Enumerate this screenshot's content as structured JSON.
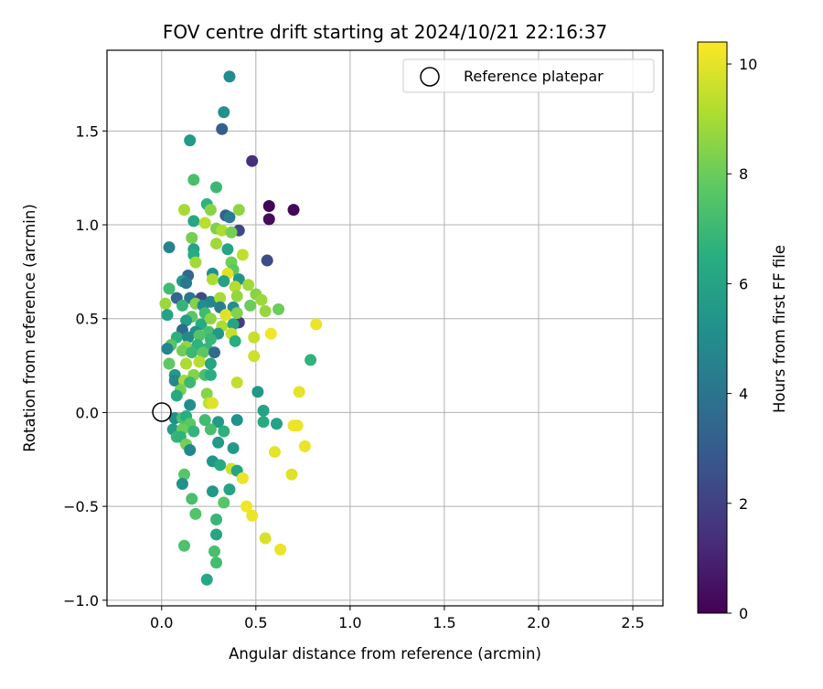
{
  "chart_data": {
    "type": "scatter",
    "title": "FOV centre drift starting at 2024/10/21 22:16:37",
    "xlabel": "Angular distance from reference (arcmin)",
    "ylabel": "Rotation from reference (arcmin)",
    "xlim": [
      -0.29,
      2.66
    ],
    "ylim": [
      -1.03,
      1.93
    ],
    "xticks": [
      0.0,
      0.5,
      1.0,
      1.5,
      2.0,
      2.5
    ],
    "xtick_labels": [
      "0.0",
      "0.5",
      "1.0",
      "1.5",
      "2.0",
      "2.5"
    ],
    "yticks": [
      -1.0,
      -0.5,
      0.0,
      0.5,
      1.0,
      1.5
    ],
    "ytick_labels": [
      "−1.0",
      "−0.5",
      "0.0",
      "0.5",
      "1.0",
      "1.5"
    ],
    "grid": true,
    "legend": {
      "position": "top-right",
      "entries": [
        "Reference platepar"
      ]
    },
    "reference_point": {
      "x": 0.0,
      "y": 0.0,
      "marker": "open circle"
    },
    "colorbar": {
      "label": "Hours from first FF file",
      "range": [
        0,
        10.4
      ],
      "ticks": [
        0,
        2,
        4,
        6,
        8,
        10
      ],
      "tick_labels": [
        "0",
        "2",
        "4",
        "6",
        "8",
        "10"
      ],
      "colormap": "viridis"
    },
    "points": [
      {
        "x": 0.57,
        "y": 1.1,
        "c": 0.1
      },
      {
        "x": 0.7,
        "y": 1.08,
        "c": 0.2
      },
      {
        "x": 0.57,
        "y": 1.03,
        "c": 0.3
      },
      {
        "x": 0.48,
        "y": 1.34,
        "c": 1.4
      },
      {
        "x": 0.32,
        "y": 1.51,
        "c": 3.1
      },
      {
        "x": 0.56,
        "y": 0.81,
        "c": 2.4
      },
      {
        "x": 0.41,
        "y": 0.97,
        "c": 2.2
      },
      {
        "x": 0.41,
        "y": 0.48,
        "c": 1.9
      },
      {
        "x": 0.36,
        "y": 1.79,
        "c": 5.0
      },
      {
        "x": 0.33,
        "y": 1.6,
        "c": 5.2
      },
      {
        "x": 0.15,
        "y": 1.45,
        "c": 5.6
      },
      {
        "x": 0.17,
        "y": 1.24,
        "c": 7.3
      },
      {
        "x": 0.29,
        "y": 1.2,
        "c": 7.0
      },
      {
        "x": 0.24,
        "y": 1.11,
        "c": 6.7
      },
      {
        "x": 0.34,
        "y": 1.05,
        "c": 3.2
      },
      {
        "x": 0.36,
        "y": 1.04,
        "c": 4.3
      },
      {
        "x": 0.12,
        "y": 1.08,
        "c": 9.0
      },
      {
        "x": 0.26,
        "y": 1.08,
        "c": 8.5
      },
      {
        "x": 0.41,
        "y": 1.08,
        "c": 8.6
      },
      {
        "x": 0.17,
        "y": 1.02,
        "c": 6.2
      },
      {
        "x": 0.23,
        "y": 1.01,
        "c": 9.3
      },
      {
        "x": 0.29,
        "y": 0.98,
        "c": 8.3
      },
      {
        "x": 0.32,
        "y": 0.97,
        "c": 9.1
      },
      {
        "x": 0.37,
        "y": 0.96,
        "c": 8.2
      },
      {
        "x": 0.04,
        "y": 0.88,
        "c": 4.6
      },
      {
        "x": 0.16,
        "y": 0.93,
        "c": 8.2
      },
      {
        "x": 0.17,
        "y": 0.87,
        "c": 5.9
      },
      {
        "x": 0.29,
        "y": 0.9,
        "c": 8.9
      },
      {
        "x": 0.35,
        "y": 0.87,
        "c": 6.1
      },
      {
        "x": 0.43,
        "y": 0.84,
        "c": 9.4
      },
      {
        "x": 0.17,
        "y": 0.84,
        "c": 6.4
      },
      {
        "x": 0.18,
        "y": 0.8,
        "c": 8.9
      },
      {
        "x": 0.37,
        "y": 0.8,
        "c": 8.1
      },
      {
        "x": 0.38,
        "y": 0.76,
        "c": 7.7
      },
      {
        "x": 0.35,
        "y": 0.74,
        "c": 9.9
      },
      {
        "x": 0.27,
        "y": 0.74,
        "c": 5.2
      },
      {
        "x": 0.14,
        "y": 0.73,
        "c": 3.5
      },
      {
        "x": 0.11,
        "y": 0.7,
        "c": 5.6
      },
      {
        "x": 0.27,
        "y": 0.71,
        "c": 9.1
      },
      {
        "x": 0.33,
        "y": 0.7,
        "c": 5.9
      },
      {
        "x": 0.41,
        "y": 0.71,
        "c": 5.4
      },
      {
        "x": 0.13,
        "y": 0.69,
        "c": 4.1
      },
      {
        "x": 0.04,
        "y": 0.66,
        "c": 7.1
      },
      {
        "x": 0.39,
        "y": 0.67,
        "c": 9.2
      },
      {
        "x": 0.46,
        "y": 0.68,
        "c": 8.9
      },
      {
        "x": 0.08,
        "y": 0.61,
        "c": 3.4
      },
      {
        "x": 0.15,
        "y": 0.61,
        "c": 4.0
      },
      {
        "x": 0.21,
        "y": 0.61,
        "c": 2.3
      },
      {
        "x": 0.26,
        "y": 0.59,
        "c": 4.7
      },
      {
        "x": 0.31,
        "y": 0.61,
        "c": 9.0
      },
      {
        "x": 0.4,
        "y": 0.62,
        "c": 8.7
      },
      {
        "x": 0.5,
        "y": 0.63,
        "c": 8.5
      },
      {
        "x": 0.02,
        "y": 0.58,
        "c": 8.8
      },
      {
        "x": 0.11,
        "y": 0.57,
        "c": 6.8
      },
      {
        "x": 0.18,
        "y": 0.58,
        "c": 8.4
      },
      {
        "x": 0.22,
        "y": 0.57,
        "c": 5.0
      },
      {
        "x": 0.31,
        "y": 0.56,
        "c": 4.4
      },
      {
        "x": 0.38,
        "y": 0.56,
        "c": 5.1
      },
      {
        "x": 0.47,
        "y": 0.57,
        "c": 8.0
      },
      {
        "x": 0.53,
        "y": 0.6,
        "c": 8.8
      },
      {
        "x": 0.62,
        "y": 0.55,
        "c": 8.0
      },
      {
        "x": 0.03,
        "y": 0.52,
        "c": 5.9
      },
      {
        "x": 0.16,
        "y": 0.51,
        "c": 7.7
      },
      {
        "x": 0.23,
        "y": 0.53,
        "c": 7.1
      },
      {
        "x": 0.34,
        "y": 0.52,
        "c": 9.9
      },
      {
        "x": 0.4,
        "y": 0.53,
        "c": 8.4
      },
      {
        "x": 0.55,
        "y": 0.54,
        "c": 8.7
      },
      {
        "x": 0.13,
        "y": 0.49,
        "c": 5.8
      },
      {
        "x": 0.21,
        "y": 0.47,
        "c": 6.4
      },
      {
        "x": 0.26,
        "y": 0.5,
        "c": 8.6
      },
      {
        "x": 0.32,
        "y": 0.46,
        "c": 9.1
      },
      {
        "x": 0.38,
        "y": 0.47,
        "c": 6.0
      },
      {
        "x": 0.11,
        "y": 0.44,
        "c": 3.6
      },
      {
        "x": 0.18,
        "y": 0.43,
        "c": 5.2
      },
      {
        "x": 0.25,
        "y": 0.43,
        "c": 7.3
      },
      {
        "x": 0.3,
        "y": 0.42,
        "c": 5.5
      },
      {
        "x": 0.37,
        "y": 0.42,
        "c": 9.5
      },
      {
        "x": 0.08,
        "y": 0.4,
        "c": 6.6
      },
      {
        "x": 0.14,
        "y": 0.4,
        "c": 4.9
      },
      {
        "x": 0.2,
        "y": 0.41,
        "c": 7.5
      },
      {
        "x": 0.26,
        "y": 0.39,
        "c": 6.9
      },
      {
        "x": 0.39,
        "y": 0.38,
        "c": 6.5
      },
      {
        "x": 0.49,
        "y": 0.4,
        "c": 9.5
      },
      {
        "x": 0.58,
        "y": 0.42,
        "c": 10.2
      },
      {
        "x": 0.82,
        "y": 0.47,
        "c": 10.1
      },
      {
        "x": 0.05,
        "y": 0.36,
        "c": 7.6
      },
      {
        "x": 0.13,
        "y": 0.35,
        "c": 8.7
      },
      {
        "x": 0.19,
        "y": 0.36,
        "c": 6.7
      },
      {
        "x": 0.24,
        "y": 0.34,
        "c": 6.8
      },
      {
        "x": 0.03,
        "y": 0.34,
        "c": 4.7
      },
      {
        "x": 0.11,
        "y": 0.33,
        "c": 8.1
      },
      {
        "x": 0.16,
        "y": 0.32,
        "c": 7.0
      },
      {
        "x": 0.22,
        "y": 0.32,
        "c": 7.7
      },
      {
        "x": 0.28,
        "y": 0.32,
        "c": 3.6
      },
      {
        "x": 0.49,
        "y": 0.3,
        "c": 9.6
      },
      {
        "x": 0.79,
        "y": 0.28,
        "c": 6.7
      },
      {
        "x": 0.04,
        "y": 0.26,
        "c": 7.8
      },
      {
        "x": 0.13,
        "y": 0.26,
        "c": 9.1
      },
      {
        "x": 0.2,
        "y": 0.27,
        "c": 9.3
      },
      {
        "x": 0.26,
        "y": 0.26,
        "c": 6.1
      },
      {
        "x": 0.07,
        "y": 0.2,
        "c": 5.5
      },
      {
        "x": 0.17,
        "y": 0.2,
        "c": 8.4
      },
      {
        "x": 0.23,
        "y": 0.2,
        "c": 7.3
      },
      {
        "x": 0.26,
        "y": 0.2,
        "c": 6.5
      },
      {
        "x": 0.07,
        "y": 0.17,
        "c": 4.8
      },
      {
        "x": 0.12,
        "y": 0.17,
        "c": 9.0
      },
      {
        "x": 0.15,
        "y": 0.16,
        "c": 7.0
      },
      {
        "x": 0.4,
        "y": 0.16,
        "c": 9.4
      },
      {
        "x": 0.1,
        "y": 0.12,
        "c": 8.2
      },
      {
        "x": 0.08,
        "y": 0.09,
        "c": 6.3
      },
      {
        "x": 0.24,
        "y": 0.1,
        "c": 8.5
      },
      {
        "x": 0.51,
        "y": 0.11,
        "c": 5.5
      },
      {
        "x": 0.73,
        "y": 0.11,
        "c": 10.0
      },
      {
        "x": 0.25,
        "y": 0.05,
        "c": 9.4
      },
      {
        "x": 0.27,
        "y": 0.05,
        "c": 9.9
      },
      {
        "x": 0.15,
        "y": 0.04,
        "c": 5.1
      },
      {
        "x": 0.54,
        "y": 0.01,
        "c": 6.0
      },
      {
        "x": 0.07,
        "y": -0.03,
        "c": 5.2
      },
      {
        "x": 0.11,
        "y": -0.03,
        "c": 7.4
      },
      {
        "x": 0.13,
        "y": -0.02,
        "c": 6.5
      },
      {
        "x": 0.15,
        "y": -0.06,
        "c": 7.7
      },
      {
        "x": 0.23,
        "y": -0.04,
        "c": 7.1
      },
      {
        "x": 0.3,
        "y": -0.05,
        "c": 5.6
      },
      {
        "x": 0.4,
        "y": -0.04,
        "c": 5.2
      },
      {
        "x": 0.54,
        "y": -0.05,
        "c": 6.3
      },
      {
        "x": 0.61,
        "y": -0.06,
        "c": 5.9
      },
      {
        "x": 0.7,
        "y": -0.07,
        "c": 10.2
      },
      {
        "x": 0.72,
        "y": -0.07,
        "c": 10.1
      },
      {
        "x": 0.06,
        "y": -0.09,
        "c": 5.7
      },
      {
        "x": 0.11,
        "y": -0.09,
        "c": 8.0
      },
      {
        "x": 0.17,
        "y": -0.1,
        "c": 6.8
      },
      {
        "x": 0.26,
        "y": -0.09,
        "c": 7.3
      },
      {
        "x": 0.33,
        "y": -0.1,
        "c": 6.6
      },
      {
        "x": 0.08,
        "y": -0.13,
        "c": 6.9
      },
      {
        "x": 0.1,
        "y": -0.13,
        "c": 6.7
      },
      {
        "x": 0.3,
        "y": -0.16,
        "c": 5.6
      },
      {
        "x": 0.13,
        "y": -0.17,
        "c": 8.2
      },
      {
        "x": 0.15,
        "y": -0.2,
        "c": 4.8
      },
      {
        "x": 0.38,
        "y": -0.19,
        "c": 5.6
      },
      {
        "x": 0.6,
        "y": -0.21,
        "c": 10.0
      },
      {
        "x": 0.76,
        "y": -0.18,
        "c": 10.1
      },
      {
        "x": 0.27,
        "y": -0.26,
        "c": 5.4
      },
      {
        "x": 0.31,
        "y": -0.28,
        "c": 6.3
      },
      {
        "x": 0.37,
        "y": -0.3,
        "c": 9.6
      },
      {
        "x": 0.4,
        "y": -0.31,
        "c": 6.0
      },
      {
        "x": 0.69,
        "y": -0.33,
        "c": 9.9
      },
      {
        "x": 0.12,
        "y": -0.33,
        "c": 7.6
      },
      {
        "x": 0.43,
        "y": -0.35,
        "c": 10.1
      },
      {
        "x": 0.11,
        "y": -0.38,
        "c": 5.2
      },
      {
        "x": 0.27,
        "y": -0.42,
        "c": 5.5
      },
      {
        "x": 0.36,
        "y": -0.41,
        "c": 5.9
      },
      {
        "x": 0.16,
        "y": -0.46,
        "c": 7.3
      },
      {
        "x": 0.33,
        "y": -0.48,
        "c": 7.6
      },
      {
        "x": 0.45,
        "y": -0.5,
        "c": 10.2
      },
      {
        "x": 0.18,
        "y": -0.54,
        "c": 7.5
      },
      {
        "x": 0.48,
        "y": -0.55,
        "c": 10.1
      },
      {
        "x": 0.29,
        "y": -0.57,
        "c": 6.9
      },
      {
        "x": 0.29,
        "y": -0.65,
        "c": 6.1
      },
      {
        "x": 0.55,
        "y": -0.67,
        "c": 9.8
      },
      {
        "x": 0.12,
        "y": -0.71,
        "c": 7.4
      },
      {
        "x": 0.28,
        "y": -0.74,
        "c": 7.3
      },
      {
        "x": 0.29,
        "y": -0.8,
        "c": 7.2
      },
      {
        "x": 0.63,
        "y": -0.73,
        "c": 10.1
      },
      {
        "x": 0.24,
        "y": -0.89,
        "c": 6.2
      }
    ]
  }
}
